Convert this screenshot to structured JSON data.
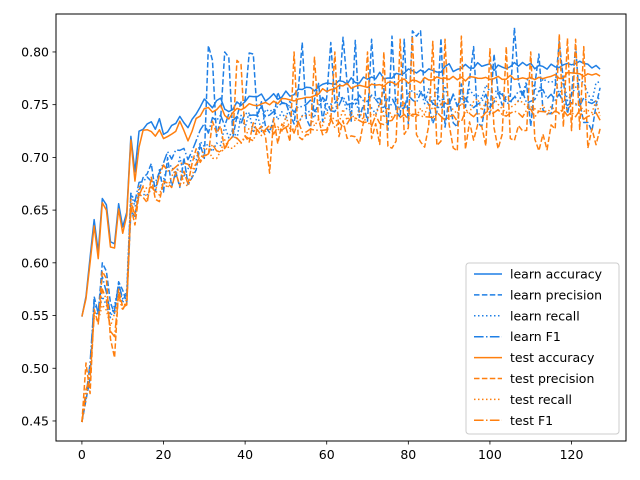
{
  "chart_data": {
    "type": "line",
    "title": "",
    "xlabel": "",
    "ylabel": "",
    "xlim": [
      -6.35,
      133.35
    ],
    "ylim": [
      0.431,
      0.836
    ],
    "xticks": [
      0,
      20,
      40,
      60,
      80,
      100,
      120
    ],
    "xtick_labels": [
      "0",
      "20",
      "40",
      "60",
      "80",
      "100",
      "120"
    ],
    "yticks": [
      0.45,
      0.5,
      0.55,
      0.6,
      0.65,
      0.7,
      0.75,
      0.8
    ],
    "ytick_labels": [
      "0.45",
      "0.50",
      "0.55",
      "0.60",
      "0.65",
      "0.70",
      "0.75",
      "0.80"
    ],
    "grid": false,
    "legend_position": "lower-right",
    "colors": {
      "learn": "#1f7fe5",
      "test": "#ff7f0e"
    },
    "series": [
      {
        "name": "learn accuracy",
        "color": "#1f7fe5",
        "dash": "solid",
        "key_x": [
          0,
          1,
          2,
          3,
          4,
          5,
          6,
          7,
          8,
          9,
          10,
          11,
          12,
          13,
          14,
          15,
          16,
          17,
          18,
          19,
          20,
          22,
          24,
          26,
          28,
          30,
          32,
          34,
          36,
          38,
          40,
          45,
          50,
          55,
          60,
          65,
          70,
          75,
          80,
          85,
          90,
          95,
          100,
          105,
          110,
          115,
          120,
          125,
          127
        ],
        "key_y": [
          0.549,
          0.568,
          0.605,
          0.641,
          0.61,
          0.661,
          0.655,
          0.62,
          0.618,
          0.656,
          0.634,
          0.648,
          0.722,
          0.688,
          0.726,
          0.73,
          0.73,
          0.731,
          0.73,
          0.735,
          0.725,
          0.728,
          0.74,
          0.728,
          0.742,
          0.754,
          0.75,
          0.754,
          0.745,
          0.752,
          0.754,
          0.757,
          0.76,
          0.763,
          0.77,
          0.773,
          0.775,
          0.778,
          0.782,
          0.783,
          0.785,
          0.786,
          0.786,
          0.787,
          0.786,
          0.787,
          0.788,
          0.788,
          0.782
        ],
        "noise": 0.004,
        "seed": 11
      },
      {
        "name": "learn precision",
        "color": "#1f7fe5",
        "dash": "dashed",
        "key_x": [
          0,
          1,
          2,
          3,
          4,
          5,
          6,
          7,
          8,
          9,
          10,
          11,
          12,
          13,
          14,
          15,
          16,
          17,
          18,
          20,
          22,
          24,
          26,
          28,
          30,
          32,
          34,
          36,
          38,
          40,
          45,
          50,
          55,
          60,
          65,
          70,
          75,
          80,
          85,
          90,
          95,
          100,
          105,
          110,
          115,
          120,
          125,
          127
        ],
        "key_y": [
          0.449,
          0.47,
          0.49,
          0.568,
          0.552,
          0.6,
          0.592,
          0.562,
          0.552,
          0.582,
          0.574,
          0.562,
          0.66,
          0.65,
          0.665,
          0.68,
          0.675,
          0.68,
          0.678,
          0.68,
          0.684,
          0.69,
          0.685,
          0.7,
          0.71,
          0.74,
          0.74,
          0.715,
          0.725,
          0.745,
          0.74,
          0.75,
          0.745,
          0.755,
          0.75,
          0.75,
          0.745,
          0.75,
          0.752,
          0.748,
          0.752,
          0.75,
          0.755,
          0.748,
          0.75,
          0.752,
          0.748,
          0.748
        ],
        "noise": 0.022,
        "seed": 23,
        "spikes": [
          [
            31,
            0.806
          ],
          [
            32,
            0.792
          ],
          [
            35,
            0.8
          ],
          [
            36,
            0.795
          ],
          [
            41,
            0.799
          ],
          [
            42,
            0.798
          ],
          [
            54,
            0.809
          ],
          [
            61,
            0.809
          ],
          [
            64,
            0.814
          ],
          [
            67,
            0.811
          ],
          [
            71,
            0.812
          ],
          [
            76,
            0.815
          ],
          [
            79,
            0.812
          ],
          [
            81,
            0.82
          ],
          [
            82,
            0.815
          ],
          [
            83,
            0.82
          ],
          [
            88,
            0.813
          ],
          [
            96,
            0.805
          ],
          [
            101,
            0.798
          ],
          [
            106,
            0.823
          ],
          [
            112,
            0.798
          ],
          [
            117,
            0.81
          ],
          [
            121,
            0.805
          ],
          [
            125,
            0.725
          ]
        ]
      },
      {
        "name": "learn recall",
        "color": "#1f7fe5",
        "dash": "dotted",
        "key_x": [
          0,
          1,
          2,
          3,
          4,
          5,
          6,
          7,
          8,
          9,
          10,
          11,
          12,
          13,
          14,
          15,
          16,
          18,
          20,
          22,
          24,
          26,
          28,
          30,
          35,
          40,
          45,
          50,
          55,
          60,
          65,
          70,
          75,
          80,
          85,
          90,
          95,
          100,
          105,
          110,
          115,
          120,
          125,
          127
        ],
        "key_y": [
          0.449,
          0.472,
          0.5,
          0.555,
          0.55,
          0.568,
          0.56,
          0.548,
          0.56,
          0.578,
          0.562,
          0.575,
          0.672,
          0.65,
          0.672,
          0.676,
          0.675,
          0.678,
          0.683,
          0.69,
          0.694,
          0.69,
          0.7,
          0.712,
          0.72,
          0.73,
          0.738,
          0.742,
          0.745,
          0.748,
          0.748,
          0.75,
          0.752,
          0.752,
          0.755,
          0.758,
          0.76,
          0.76,
          0.762,
          0.765,
          0.765,
          0.765,
          0.76,
          0.76
        ],
        "noise": 0.012,
        "seed": 37
      },
      {
        "name": "learn F1",
        "color": "#1f7fe5",
        "dash": "dashdot",
        "key_x": [
          0,
          1,
          2,
          3,
          4,
          5,
          6,
          7,
          8,
          9,
          10,
          11,
          12,
          13,
          14,
          15,
          16,
          18,
          20,
          22,
          24,
          26,
          28,
          30,
          35,
          40,
          45,
          50,
          55,
          60,
          65,
          70,
          75,
          80,
          85,
          90,
          95,
          100,
          105,
          110,
          115,
          120,
          125,
          127
        ],
        "key_y": [
          0.449,
          0.473,
          0.505,
          0.562,
          0.553,
          0.587,
          0.572,
          0.552,
          0.555,
          0.58,
          0.566,
          0.57,
          0.67,
          0.65,
          0.67,
          0.682,
          0.678,
          0.684,
          0.697,
          0.7,
          0.704,
          0.7,
          0.708,
          0.73,
          0.735,
          0.74,
          0.743,
          0.746,
          0.748,
          0.752,
          0.75,
          0.752,
          0.752,
          0.752,
          0.754,
          0.754,
          0.755,
          0.755,
          0.757,
          0.756,
          0.757,
          0.757,
          0.752,
          0.75
        ],
        "noise": 0.008,
        "seed": 41
      },
      {
        "name": "test accuracy",
        "color": "#ff7f0e",
        "dash": "solid",
        "key_x": [
          0,
          1,
          2,
          3,
          4,
          5,
          6,
          7,
          8,
          9,
          10,
          11,
          12,
          13,
          14,
          15,
          16,
          17,
          18,
          19,
          20,
          22,
          24,
          26,
          28,
          30,
          32,
          34,
          36,
          38,
          40,
          45,
          50,
          55,
          60,
          65,
          70,
          75,
          80,
          85,
          90,
          95,
          100,
          105,
          110,
          115,
          120,
          125,
          127
        ],
        "key_y": [
          0.549,
          0.566,
          0.6,
          0.635,
          0.604,
          0.657,
          0.65,
          0.615,
          0.614,
          0.651,
          0.628,
          0.645,
          0.718,
          0.68,
          0.712,
          0.725,
          0.725,
          0.726,
          0.722,
          0.728,
          0.718,
          0.72,
          0.735,
          0.718,
          0.735,
          0.748,
          0.745,
          0.747,
          0.738,
          0.745,
          0.748,
          0.752,
          0.755,
          0.758,
          0.765,
          0.768,
          0.768,
          0.77,
          0.772,
          0.773,
          0.775,
          0.775,
          0.775,
          0.776,
          0.776,
          0.777,
          0.778,
          0.78,
          0.775
        ],
        "noise": 0.003,
        "seed": 53
      },
      {
        "name": "test precision",
        "color": "#ff7f0e",
        "dash": "dashed",
        "key_x": [
          0,
          1,
          2,
          3,
          4,
          5,
          6,
          7,
          8,
          9,
          10,
          11,
          12,
          13,
          14,
          15,
          16,
          17,
          18,
          20,
          22,
          24,
          26,
          28,
          30,
          32,
          34,
          36,
          38,
          40,
          45,
          50,
          55,
          60,
          65,
          70,
          75,
          80,
          85,
          90,
          95,
          100,
          105,
          110,
          115,
          120,
          125,
          127
        ],
        "key_y": [
          0.449,
          0.505,
          0.476,
          0.556,
          0.542,
          0.592,
          0.585,
          0.528,
          0.51,
          0.575,
          0.558,
          0.56,
          0.66,
          0.64,
          0.66,
          0.672,
          0.67,
          0.675,
          0.668,
          0.675,
          0.68,
          0.685,
          0.68,
          0.695,
          0.705,
          0.725,
          0.735,
          0.705,
          0.715,
          0.73,
          0.722,
          0.73,
          0.725,
          0.735,
          0.728,
          0.725,
          0.72,
          0.722,
          0.72,
          0.718,
          0.72,
          0.718,
          0.72,
          0.715,
          0.718,
          0.718,
          0.715,
          0.715
        ],
        "noise": 0.014,
        "seed": 67,
        "spikes": [
          [
            38,
            0.792
          ],
          [
            39,
            0.788
          ],
          [
            46,
            0.685
          ],
          [
            52,
            0.8
          ],
          [
            57,
            0.795
          ],
          [
            62,
            0.8
          ],
          [
            70,
            0.8
          ],
          [
            74,
            0.8
          ],
          [
            78,
            0.812
          ],
          [
            81,
            0.815
          ],
          [
            86,
            0.81
          ],
          [
            89,
            0.812
          ],
          [
            93,
            0.815
          ],
          [
            100,
            0.803
          ],
          [
            104,
            0.805
          ],
          [
            110,
            0.8
          ],
          [
            117,
            0.817
          ],
          [
            119,
            0.813
          ],
          [
            121,
            0.812
          ],
          [
            123,
            0.805
          ],
          [
            126,
            0.712
          ]
        ]
      },
      {
        "name": "test recall",
        "color": "#ff7f0e",
        "dash": "dotted",
        "key_x": [
          0,
          1,
          2,
          3,
          4,
          5,
          6,
          7,
          8,
          9,
          10,
          11,
          12,
          13,
          14,
          15,
          16,
          18,
          20,
          22,
          24,
          26,
          28,
          30,
          35,
          40,
          45,
          50,
          55,
          60,
          65,
          70,
          75,
          80,
          85,
          90,
          95,
          100,
          105,
          110,
          115,
          120,
          125,
          127
        ],
        "key_y": [
          0.449,
          0.47,
          0.5,
          0.548,
          0.545,
          0.56,
          0.555,
          0.54,
          0.552,
          0.568,
          0.555,
          0.566,
          0.665,
          0.645,
          0.666,
          0.67,
          0.668,
          0.67,
          0.674,
          0.68,
          0.684,
          0.68,
          0.69,
          0.702,
          0.71,
          0.72,
          0.728,
          0.732,
          0.735,
          0.738,
          0.74,
          0.742,
          0.744,
          0.745,
          0.746,
          0.748,
          0.748,
          0.748,
          0.748,
          0.748,
          0.748,
          0.748,
          0.746,
          0.745
        ],
        "noise": 0.008,
        "seed": 79
      },
      {
        "name": "test F1",
        "color": "#ff7f0e",
        "dash": "dashdot",
        "key_x": [
          0,
          1,
          2,
          3,
          4,
          5,
          6,
          7,
          8,
          9,
          10,
          11,
          12,
          13,
          14,
          15,
          16,
          18,
          20,
          22,
          24,
          26,
          28,
          30,
          35,
          40,
          45,
          50,
          55,
          60,
          65,
          70,
          75,
          80,
          85,
          90,
          95,
          100,
          105,
          110,
          115,
          120,
          125,
          127
        ],
        "key_y": [
          0.449,
          0.48,
          0.49,
          0.55,
          0.544,
          0.575,
          0.565,
          0.535,
          0.53,
          0.57,
          0.556,
          0.562,
          0.66,
          0.642,
          0.662,
          0.67,
          0.668,
          0.672,
          0.69,
          0.688,
          0.692,
          0.688,
          0.695,
          0.705,
          0.712,
          0.718,
          0.724,
          0.728,
          0.73,
          0.732,
          0.734,
          0.735,
          0.736,
          0.737,
          0.738,
          0.738,
          0.74,
          0.74,
          0.74,
          0.741,
          0.741,
          0.742,
          0.74,
          0.74
        ],
        "noise": 0.006,
        "seed": 83
      }
    ]
  }
}
